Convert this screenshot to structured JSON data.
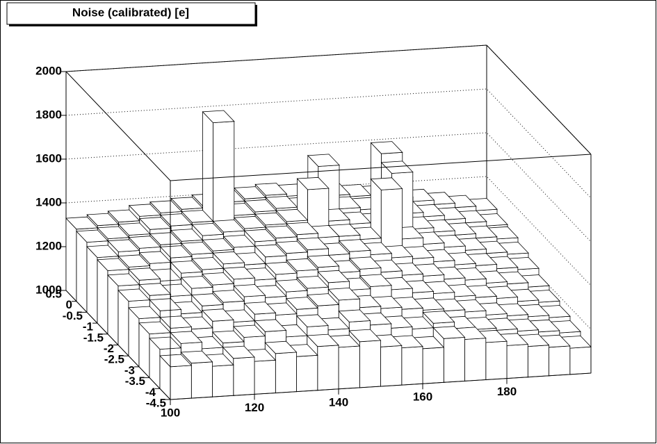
{
  "chart_data": {
    "type": "lego",
    "title": "Noise (calibrated) [e]",
    "x_bins": [
      100,
      105,
      110,
      115,
      120,
      125,
      130,
      135,
      140,
      145,
      150,
      155,
      160,
      165,
      170,
      175,
      180,
      185,
      190,
      195,
      200
    ],
    "y_bins": [
      -4.5,
      -4,
      -3.5,
      -3,
      -2.5,
      -2,
      -1.5,
      -1,
      -0.5,
      0,
      0.5
    ],
    "values": [
      [
        1150,
        1160,
        1140,
        1170,
        1150,
        1180,
        1160,
        1200,
        1190,
        1210,
        1180,
        1170,
        1160,
        1200,
        1190,
        1170,
        1150,
        1140,
        1130,
        1120
      ],
      [
        1180,
        1200,
        1170,
        1190,
        1210,
        1230,
        1200,
        1240,
        1220,
        1250,
        1230,
        1210,
        1200,
        1220,
        1190,
        1180,
        1170,
        1160,
        1150,
        1140
      ],
      [
        1200,
        1220,
        1210,
        1240,
        1230,
        1260,
        1250,
        1270,
        1280,
        1300,
        1260,
        1250,
        1240,
        1230,
        1220,
        1210,
        1190,
        1180,
        1170,
        1160
      ],
      [
        1220,
        1250,
        1230,
        1260,
        1270,
        1290,
        1280,
        1300,
        1310,
        1330,
        1290,
        1300,
        1280,
        1260,
        1250,
        1230,
        1220,
        1210,
        1190,
        1180
      ],
      [
        1250,
        1270,
        1260,
        1290,
        1300,
        1320,
        1310,
        1330,
        1340,
        1350,
        1320,
        1330,
        1310,
        1290,
        1280,
        1260,
        1250,
        1230,
        1220,
        1200
      ],
      [
        1270,
        1290,
        1280,
        1310,
        1320,
        1340,
        1330,
        1360,
        1370,
        1380,
        1350,
        1360,
        1340,
        1320,
        1310,
        1290,
        1270,
        1260,
        1240,
        1230
      ],
      [
        1290,
        1300,
        1310,
        1330,
        1340,
        1350,
        1360,
        1380,
        1390,
        1400,
        1380,
        1380,
        1360,
        1580,
        1350,
        1320,
        1300,
        1280,
        1260,
        1250
      ],
      [
        1300,
        1320,
        1330,
        1340,
        1350,
        1370,
        1380,
        1390,
        1400,
        1410,
        1550,
        1400,
        1380,
        1370,
        1600,
        1340,
        1320,
        1300,
        1280,
        1270
      ],
      [
        1320,
        1330,
        1340,
        1360,
        1370,
        1380,
        1830,
        1400,
        1410,
        1420,
        1410,
        1600,
        1400,
        1390,
        1640,
        1360,
        1340,
        1320,
        1300,
        1280
      ],
      [
        1330,
        1340,
        1350,
        1370,
        1380,
        1390,
        1400,
        1410,
        1420,
        1430,
        1420,
        1420,
        1410,
        1400,
        1390,
        1380,
        1360,
        1340,
        1320,
        1300
      ]
    ],
    "xlim": [
      100,
      200
    ],
    "ylim": [
      -4.5,
      0.5
    ],
    "zlim": [
      1000,
      2000
    ],
    "xticks": [
      100,
      120,
      140,
      160,
      180
    ],
    "yticks": [
      0.5,
      0,
      -0.5,
      -1,
      -1.5,
      -2,
      -2.5,
      -3,
      -3.5,
      -4,
      -4.5
    ],
    "zticks": [
      1000,
      1200,
      1400,
      1600,
      1800,
      2000
    ],
    "grid": true,
    "color": "#ffffff"
  }
}
